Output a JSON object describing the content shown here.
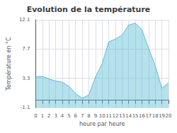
{
  "chart_data": {
    "type": "area",
    "title": "Evolution de la température",
    "xlabel": "heure par heure",
    "ylabel": "Température en °C",
    "x": [
      0,
      1,
      2,
      3,
      4,
      5,
      6,
      7,
      8,
      9,
      10,
      11,
      12,
      13,
      14,
      15,
      16,
      17,
      18,
      19,
      20
    ],
    "values": [
      3.5,
      3.6,
      3.2,
      2.9,
      2.7,
      2.1,
      1.0,
      0.3,
      0.8,
      3.5,
      5.5,
      8.8,
      9.2,
      9.8,
      11.3,
      11.6,
      10.6,
      7.8,
      5.2,
      1.8,
      2.6
    ],
    "color": "#5bbcd6",
    "xlim": [
      0,
      20
    ],
    "xticks": [
      0,
      1,
      2,
      3,
      4,
      5,
      6,
      7,
      8,
      9,
      10,
      11,
      12,
      13,
      14,
      15,
      16,
      17,
      18,
      19,
      20
    ],
    "ylim": [
      -1.1,
      12.1
    ],
    "yticks": [
      -1.1,
      3.3,
      7.7,
      12.1
    ],
    "grid": true
  }
}
